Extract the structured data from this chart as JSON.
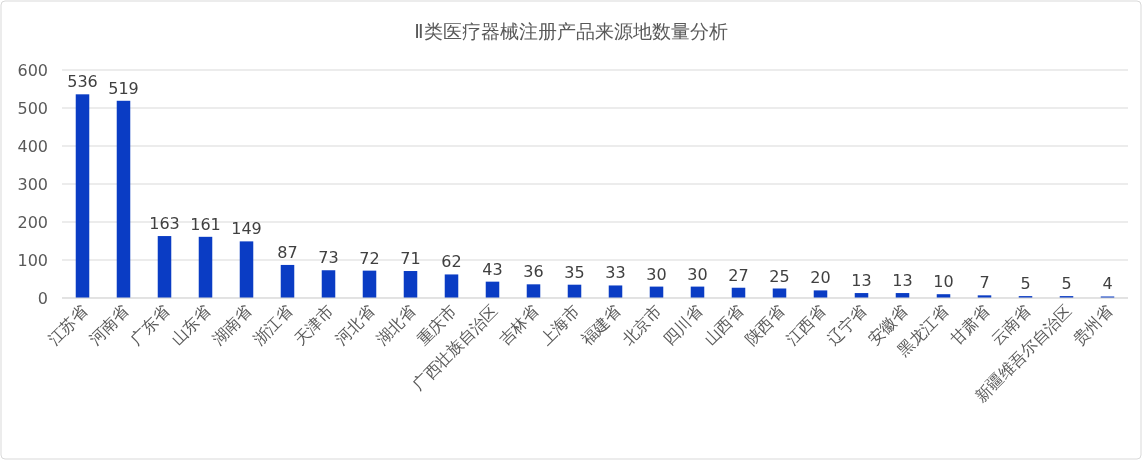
{
  "chart_data": {
    "type": "bar",
    "title": "Ⅱ类医疗器械注册产品来源地数量分析",
    "categories": [
      "江苏省",
      "河南省",
      "广东省",
      "山东省",
      "湖南省",
      "浙江省",
      "天津市",
      "河北省",
      "湖北省",
      "重庆市",
      "广西壮族自治区",
      "吉林省",
      "上海市",
      "福建省",
      "北京市",
      "四川省",
      "山西省",
      "陕西省",
      "江西省",
      "辽宁省",
      "安徽省",
      "黑龙江省",
      "甘肃省",
      "云南省",
      "新疆维吾尔自治区",
      "贵州省"
    ],
    "values": [
      536,
      519,
      163,
      161,
      149,
      87,
      73,
      72,
      71,
      62,
      43,
      36,
      35,
      33,
      30,
      30,
      27,
      25,
      20,
      13,
      13,
      10,
      7,
      5,
      5,
      4
    ],
    "color": "#0a3cc4",
    "ylim": [
      0,
      600
    ],
    "yticks": [
      0,
      100,
      200,
      300,
      400,
      500,
      600
    ],
    "grid": "y",
    "data_labels": true
  }
}
